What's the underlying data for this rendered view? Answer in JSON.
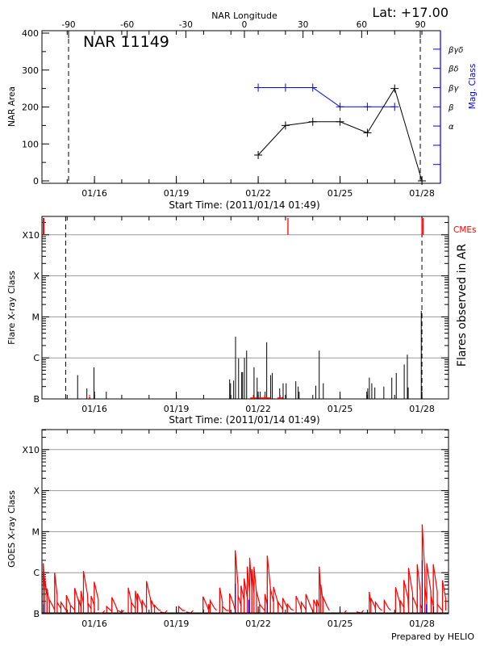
{
  "header": {
    "lat_label": "Lat: +17.00"
  },
  "footer": {
    "prepared_by": "Prepared by HELIO"
  },
  "colors": {
    "axis": "#000000",
    "mag_class": "#0000ff",
    "cme": "#ff0000",
    "grid": "#999999",
    "goes_long": "#ff0000",
    "goes_short": "#0000ff"
  },
  "time_axis": {
    "start_time": "2011-01-14 01:49",
    "tick_labels": [
      "01/16",
      "01/19",
      "01/22",
      "01/25",
      "01/28"
    ],
    "tick_dates": [
      "2011-01-16 00:00",
      "2011-01-19 00:00",
      "2011-01-22 00:00",
      "2011-01-25 00:00",
      "2011-01-28 00:00"
    ],
    "label": "Start Time: (2011/01/14 01:49)"
  },
  "chart_data": [
    {
      "type": "line",
      "title": "NAR 11149",
      "xlabel": "Start Time: (2011/01/14 01:49)",
      "ylabel": "NAR Area",
      "ylim": [
        0,
        400
      ],
      "y_ticks": [
        "0",
        "100",
        "200",
        "300",
        "400"
      ],
      "top_axis_label": "NAR Longitude",
      "top_axis_ticks": [
        "-90",
        "-60",
        "-30",
        "0",
        "30",
        "60",
        "90"
      ],
      "longitude_markers": [
        -90,
        90
      ],
      "right_axis_label": "Mag. Class",
      "right_axis_ticks": [
        "α",
        "β",
        "βγ",
        "βδ",
        "βγδ"
      ],
      "grid": false,
      "area_series": [
        {
          "x": "2011-01-22 00:00",
          "y": 70
        },
        {
          "x": "2011-01-23 00:00",
          "y": 150
        },
        {
          "x": "2011-01-24 00:00",
          "y": 160
        },
        {
          "x": "2011-01-25 00:00",
          "y": 160
        },
        {
          "x": "2011-01-26 00:00",
          "y": 130
        },
        {
          "x": "2011-01-27 00:00",
          "y": 250
        },
        {
          "x": "2011-01-28 00:00",
          "y": 0
        }
      ],
      "mag_class_series": [
        {
          "x": "2011-01-22 00:00",
          "class": "βγ"
        },
        {
          "x": "2011-01-23 00:00",
          "class": "βγ"
        },
        {
          "x": "2011-01-24 00:00",
          "class": "βγ"
        },
        {
          "x": "2011-01-25 00:00",
          "class": "β"
        },
        {
          "x": "2011-01-26 00:00",
          "class": "β"
        },
        {
          "x": "2011-01-27 00:00",
          "class": "β"
        }
      ]
    },
    {
      "type": "bar",
      "xlabel": "Start Time: (2011/01/14 01:49)",
      "ylabel": "Flare X-ray Class",
      "right_axis_label": "Flares observed in AR",
      "y_ticks": [
        "B",
        "C",
        "M",
        "X",
        "X10"
      ],
      "y_scale": "log",
      "ylim": [
        "B1.0",
        "X28"
      ],
      "grid": true,
      "cme_label": "CMEs",
      "cmes": [
        "2011-01-14 03:00",
        "2011-01-14 03:30",
        "2011-01-23 02:10",
        "2011-01-28 00:00",
        "2011-01-28 01:00"
      ],
      "longitude_marker_dates": [
        "2011-01-14 22:40",
        "2011-01-28 00:00"
      ],
      "flares": [
        {
          "t": "2011-01-15 09:12",
          "class": "B3.8"
        },
        {
          "t": "2011-01-15 17:20",
          "class": "B1.8"
        },
        {
          "t": "2011-01-15 23:35",
          "class": "B5.9"
        },
        {
          "t": "2011-01-16 10:25",
          "class": "B1.5"
        },
        {
          "t": "2011-01-20 22:55",
          "class": "B3.0"
        },
        {
          "t": "2011-01-20 23:40",
          "class": "B2.4"
        },
        {
          "t": "2011-01-21 02:25",
          "class": "B2.8"
        },
        {
          "t": "2011-01-21 04:05",
          "class": "C3.3"
        },
        {
          "t": "2011-01-21 06:45",
          "class": "B9.7"
        },
        {
          "t": "2011-01-21 09:30",
          "class": "B4.5"
        },
        {
          "t": "2011-01-21 10:20",
          "class": "B4.5"
        },
        {
          "t": "2011-01-21 11:55",
          "class": "C1.0"
        },
        {
          "t": "2011-01-21 13:50",
          "class": "C1.5"
        },
        {
          "t": "2011-01-21 20:20",
          "class": "B5.9"
        },
        {
          "t": "2011-01-21 23:05",
          "class": "B3.3"
        },
        {
          "t": "2011-01-22 01:50",
          "class": "B1.5"
        },
        {
          "t": "2011-01-22 06:05",
          "class": "B1.5"
        },
        {
          "t": "2011-01-22 07:30",
          "class": "C2.4"
        },
        {
          "t": "2011-01-22 11:00",
          "class": "B3.8"
        },
        {
          "t": "2011-01-22 12:25",
          "class": "B4.3"
        },
        {
          "t": "2011-01-22 18:55",
          "class": "B1.8"
        },
        {
          "t": "2011-01-22 21:55",
          "class": "B2.4"
        },
        {
          "t": "2011-01-23 00:35",
          "class": "B2.4"
        },
        {
          "t": "2011-01-23 09:05",
          "class": "B2.7"
        },
        {
          "t": "2011-01-23 11:10",
          "class": "B2.0"
        },
        {
          "t": "2011-01-23 12:00",
          "class": "B1.5"
        },
        {
          "t": "2011-01-24 02:40",
          "class": "B2.1"
        },
        {
          "t": "2011-01-24 05:40",
          "class": "C1.5"
        },
        {
          "t": "2011-01-24 09:15",
          "class": "B2.4"
        },
        {
          "t": "2011-01-25 23:30",
          "class": "B1.5"
        },
        {
          "t": "2011-01-26 00:20",
          "class": "B1.8"
        },
        {
          "t": "2011-01-26 01:45",
          "class": "B3.3"
        },
        {
          "t": "2011-01-26 03:55",
          "class": "B2.4"
        },
        {
          "t": "2011-01-26 06:35",
          "class": "B1.9"
        },
        {
          "t": "2011-01-26 14:30",
          "class": "B2.0"
        },
        {
          "t": "2011-01-26 21:30",
          "class": "B3.3"
        },
        {
          "t": "2011-01-27 01:25",
          "class": "B4.3"
        },
        {
          "t": "2011-01-27 08:25",
          "class": "B6.9"
        },
        {
          "t": "2011-01-27 11:10",
          "class": "C1.2"
        },
        {
          "t": "2011-01-27 11:55",
          "class": "B1.9"
        },
        {
          "t": "2011-01-27 23:25",
          "class": "M1.4"
        }
      ],
      "baseline_marks": [
        {
          "start": "2011-01-15 19:00",
          "end": "2011-01-15 20:30"
        },
        {
          "start": "2011-01-21 17:00",
          "end": "2011-01-21 22:30"
        },
        {
          "start": "2011-01-22 00:30",
          "end": "2011-01-22 11:00"
        },
        {
          "start": "2011-01-22 17:00",
          "end": "2011-01-22 21:35"
        }
      ]
    },
    {
      "type": "line",
      "ylabel": "GOES X-ray Class",
      "y_ticks": [
        "B",
        "C",
        "M",
        "X",
        "X10"
      ],
      "y_scale": "log",
      "ylim": [
        "B1.0",
        "X28"
      ],
      "grid": true,
      "series": [
        {
          "color": "#ff0000",
          "points": [
            [
              "2011-01-14 03:00",
              1.7e-06
            ],
            [
              "2011-01-14 04:20",
              7.5e-07
            ],
            [
              "2011-01-14 06:15",
              4.1e-07
            ],
            [
              "2011-01-14 08:25",
              2.2e-07
            ],
            [
              "2011-01-14 13:00",
              1e-06
            ],
            [
              "2011-01-14 15:15",
              1.9e-07
            ],
            [
              "2011-01-14 18:30",
              1.9e-07
            ],
            [
              "2011-01-14 23:20",
              2.8e-07
            ],
            [
              "2011-01-15 02:55",
              1.6e-07
            ],
            [
              "2011-01-15 06:40",
              4.2e-07
            ],
            [
              "2011-01-15 10:15",
              2.2e-07
            ],
            [
              "2011-01-15 12:10",
              3.6e-07
            ],
            [
              "2011-01-15 14:20",
              1.1e-06
            ],
            [
              "2011-01-15 18:25",
              1.8e-07
            ],
            [
              "2011-01-15 21:05",
              2.7e-07
            ],
            [
              "2011-01-15 23:50",
              6e-07
            ],
            [
              "2011-01-16 03:20",
              1.05e-07
            ],
            [
              "2011-01-16 10:40",
              1.5e-07
            ],
            [
              "2011-01-16 15:20",
              2.5e-07
            ],
            [
              "2011-01-16 20:15",
              1.2e-07
            ],
            [
              "2011-01-17 05:45",
              4.3e-07
            ],
            [
              "2011-01-17 08:25",
              1.9e-07
            ],
            [
              "2011-01-17 12:00",
              3.6e-07
            ],
            [
              "2011-01-17 13:55",
              3.1e-07
            ],
            [
              "2011-01-17 18:00",
              2.1e-07
            ],
            [
              "2011-01-17 21:45",
              6.2e-07
            ],
            [
              "2011-01-18 02:05",
              2.1e-07
            ],
            [
              "2011-01-18 04:50",
              1.6e-07
            ],
            [
              "2011-01-18 10:15",
              1.1e-07
            ],
            [
              "2011-01-19 02:00",
              1.5e-07
            ],
            [
              "2011-01-19 09:05",
              1.1e-07
            ],
            [
              "2011-01-19 23:30",
              2.6e-07
            ],
            [
              "2011-01-20 04:25",
              1.7e-07
            ],
            [
              "2011-01-20 05:45",
              2.1e-07
            ],
            [
              "2011-01-20 14:10",
              4.3e-07
            ],
            [
              "2011-01-20 16:35",
              1.5e-07
            ],
            [
              "2011-01-20 22:55",
              3.1e-07
            ],
            [
              "2011-01-21 03:50",
              3.5e-06
            ],
            [
              "2011-01-21 06:15",
              2.8e-07
            ],
            [
              "2011-01-21 08:55",
              4.8e-07
            ],
            [
              "2011-01-21 11:40",
              7.2e-07
            ],
            [
              "2011-01-21 14:25",
              1.4e-06
            ],
            [
              "2011-01-21 16:30",
              2.3e-06
            ],
            [
              "2011-01-21 18:25",
              1.2e-06
            ],
            [
              "2011-01-21 20:20",
              1.4e-06
            ],
            [
              "2011-01-21 22:30",
              3.5e-07
            ],
            [
              "2011-01-22 01:15",
              1.7e-07
            ],
            [
              "2011-01-22 05:55",
              3e-07
            ],
            [
              "2011-01-22 08:00",
              2.6e-06
            ],
            [
              "2011-01-22 10:45",
              4.1e-07
            ],
            [
              "2011-01-22 13:30",
              4.5e-07
            ],
            [
              "2011-01-22 17:35",
              1.9e-07
            ],
            [
              "2011-01-22 21:35",
              2.4e-07
            ],
            [
              "2011-01-23 01:40",
              1.7e-07
            ],
            [
              "2011-01-23 09:20",
              2.7e-07
            ],
            [
              "2011-01-23 13:55",
              1.9e-07
            ],
            [
              "2011-01-23 18:00",
              3e-07
            ],
            [
              "2011-01-24 00:50",
              2.2e-07
            ],
            [
              "2011-01-24 03:30",
              2.2e-07
            ],
            [
              "2011-01-24 05:40",
              1.4e-06
            ],
            [
              "2011-01-24 07:05",
              5.1e-07
            ],
            [
              "2011-01-24 08:55",
              2.6e-07
            ],
            [
              "2011-01-24 23:55",
              1.05e-07
            ],
            [
              "2011-01-25 14:55",
              1.1e-07
            ],
            [
              "2011-01-26 01:45",
              3.4e-07
            ],
            [
              "2011-01-26 03:05",
              2.4e-07
            ],
            [
              "2011-01-26 07:10",
              1.9e-07
            ],
            [
              "2011-01-26 14:50",
              2.1e-07
            ],
            [
              "2011-01-27 00:50",
              4.4e-07
            ],
            [
              "2011-01-27 04:55",
              2.1e-07
            ],
            [
              "2011-01-27 08:10",
              6.6e-07
            ],
            [
              "2011-01-27 12:15",
              1.3e-06
            ],
            [
              "2011-01-27 15:50",
              2.6e-07
            ],
            [
              "2011-01-27 19:55",
              1.6e-06
            ],
            [
              "2011-01-27 22:35",
              1.7e-07
            ],
            [
              "2011-01-28 00:15",
              1.5e-05
            ],
            [
              "2011-01-28 02:35",
              4.8e-07
            ],
            [
              "2011-01-28 04:15",
              1.7e-06
            ],
            [
              "2011-01-28 08:05",
              2.6e-07
            ],
            [
              "2011-01-28 10:00",
              1.6e-06
            ],
            [
              "2011-01-28 13:30",
              1.7e-07
            ],
            [
              "2011-01-28 18:05",
              6.5e-07
            ]
          ]
        },
        {
          "color": "#0000ff",
          "points": [
            [
              "2011-01-14 03:00",
              1.7e-07
            ],
            [
              "2011-01-21 03:50",
              5.4e-07
            ],
            [
              "2011-01-21 15:45",
              2.2e-07
            ],
            [
              "2011-01-22 08:00",
              2.2e-07
            ],
            [
              "2011-01-28 00:15",
              2e-06
            ],
            [
              "2011-01-28 04:00",
              1.7e-07
            ],
            [
              "2011-01-28 10:15",
              1.5e-07
            ]
          ]
        }
      ]
    }
  ]
}
